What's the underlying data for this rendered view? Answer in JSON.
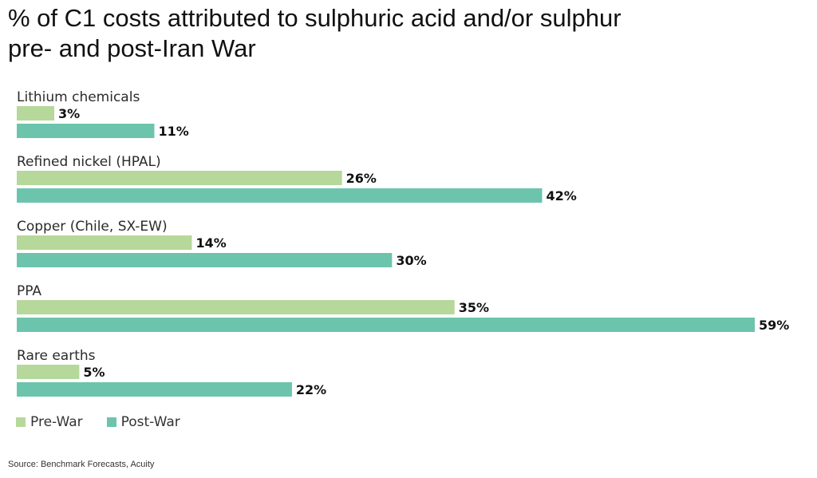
{
  "chart_data": {
    "type": "bar",
    "orientation": "horizontal",
    "title_lines": [
      "% of C1 costs attributed to sulphuric acid and/or sulphur",
      "pre- and post-Iran War"
    ],
    "categories": [
      "Lithium chemicals",
      "Refined nickel (HPAL)",
      "Copper (Chile, SX-EW)",
      "PPA",
      "Rare earths"
    ],
    "series": [
      {
        "name": "Pre-War",
        "values": [
          3,
          26,
          14,
          35,
          5
        ],
        "color": "#b6d89b"
      },
      {
        "name": "Post-War",
        "values": [
          11,
          42,
          30,
          59,
          22
        ],
        "color": "#6cc4ad"
      }
    ],
    "value_suffix": "%",
    "xlim": [
      0,
      59
    ],
    "grid": false,
    "legend_position": "bottom-left"
  },
  "source": "Source: Benchmark Forecasts, Acuity"
}
